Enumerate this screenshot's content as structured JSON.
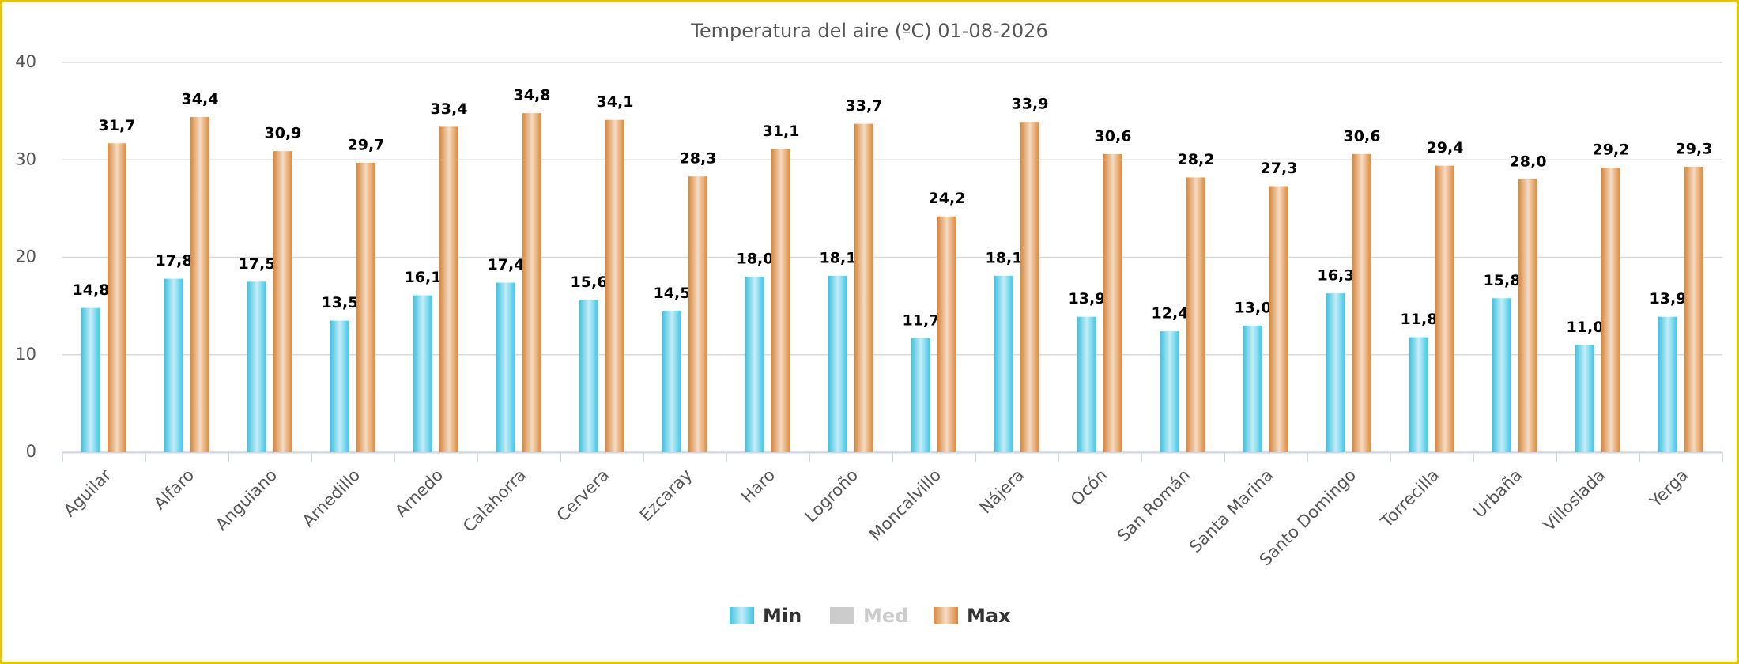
{
  "chart_data": {
    "type": "bar",
    "title": "Temperatura del aire (ºC) 01-08-2026",
    "categories": [
      "Aguilar",
      "Alfaro",
      "Anguiano",
      "Arnedillo",
      "Arnedo",
      "Calahorra",
      "Cervera",
      "Ezcaray",
      "Haro",
      "Logroño",
      "Moncalvillo",
      "Nájera",
      "Ocón",
      "San Román",
      "Santa Marina",
      "Santo Domingo",
      "Torrecilla",
      "Urbaña",
      "Villoslada",
      "Yerga"
    ],
    "series": [
      {
        "name": "Min",
        "color": "#3fc3e3",
        "visible": true,
        "values": [
          14.8,
          17.8,
          17.5,
          13.5,
          16.1,
          17.4,
          15.6,
          14.5,
          18.0,
          18.1,
          11.7,
          18.1,
          13.9,
          12.4,
          13.0,
          16.3,
          11.8,
          15.8,
          11.0,
          13.9
        ],
        "value_labels": [
          "14,8",
          "17,8",
          "17,5",
          "13,5",
          "16,1",
          "17,4",
          "15,6",
          "14,5",
          "18,0",
          "18,1",
          "11,7",
          "18,1",
          "13,9",
          "12,4",
          "13,0",
          "16,3",
          "11,8",
          "15,8",
          "11,0",
          "13,9"
        ]
      },
      {
        "name": "Med",
        "color": "#cccccc",
        "visible": false,
        "values": [
          null,
          null,
          null,
          null,
          null,
          null,
          null,
          null,
          null,
          null,
          null,
          null,
          null,
          null,
          null,
          null,
          null,
          null,
          null,
          null
        ]
      },
      {
        "name": "Max",
        "color": "#d9873a",
        "visible": true,
        "values": [
          31.7,
          34.4,
          30.9,
          29.7,
          33.4,
          34.8,
          34.1,
          28.3,
          31.1,
          33.7,
          24.2,
          33.9,
          30.6,
          28.2,
          27.3,
          30.6,
          29.4,
          28.0,
          29.2,
          29.3
        ],
        "value_labels": [
          "31,7",
          "34,4",
          "30,9",
          "29,7",
          "33,4",
          "34,8",
          "34,1",
          "28,3",
          "31,1",
          "33,7",
          "24,2",
          "33,9",
          "30,6",
          "28,2",
          "27,3",
          "30,6",
          "29,4",
          "28,0",
          "29,2",
          "29,3"
        ]
      }
    ],
    "ylim": [
      0,
      40
    ],
    "yticks": [
      0,
      10,
      20,
      30,
      40
    ],
    "grid": true,
    "legend": "bottom"
  }
}
